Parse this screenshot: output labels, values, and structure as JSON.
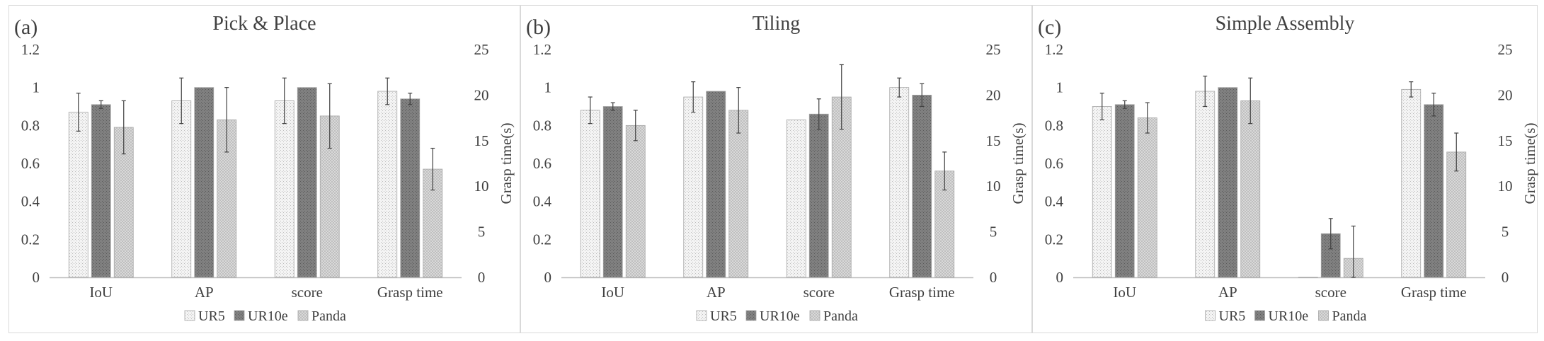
{
  "series_colors": {
    "UR5": "#f2f2f2",
    "UR10e": "#7f7f7f",
    "Panda": "#cfcfcf"
  },
  "chart_data": [
    {
      "type": "bar",
      "panel_label": "(a)",
      "title": "Pick & Place",
      "categories": [
        "IoU",
        "AP",
        "score",
        "Grasp time"
      ],
      "ylabel": "",
      "y2label": "Grasp time(s)",
      "ylim": [
        0,
        1.2
      ],
      "y2lim": [
        0,
        25
      ],
      "yticks": [
        "0",
        "0.2",
        "0.4",
        "0.6",
        "0.8",
        "1",
        "1.2"
      ],
      "y2ticks": [
        "0",
        "5",
        "10",
        "15",
        "20",
        "25"
      ],
      "grid": false,
      "legend": "bottom",
      "series": [
        {
          "name": "UR5",
          "values": [
            0.87,
            0.93,
            0.93,
            0.98
          ],
          "errors": [
            0.1,
            0.12,
            0.12,
            0.07
          ]
        },
        {
          "name": "UR10e",
          "values": [
            0.91,
            1.0,
            1.0,
            0.94
          ],
          "errors": [
            0.02,
            0.0,
            0.0,
            0.03
          ]
        },
        {
          "name": "Panda",
          "values": [
            0.79,
            0.83,
            0.85,
            0.57
          ],
          "errors": [
            0.14,
            0.17,
            0.17,
            0.11
          ]
        }
      ]
    },
    {
      "type": "bar",
      "panel_label": "(b)",
      "title": "Tiling",
      "categories": [
        "IoU",
        "AP",
        "score",
        "Grasp time"
      ],
      "ylabel": "",
      "y2label": "Grasp time(s)",
      "ylim": [
        0,
        1.2
      ],
      "y2lim": [
        0,
        25
      ],
      "yticks": [
        "0",
        "0.2",
        "0.4",
        "0.6",
        "0.8",
        "1",
        "1.2"
      ],
      "y2ticks": [
        "0",
        "5",
        "10",
        "15",
        "20",
        "25"
      ],
      "grid": false,
      "legend": "bottom",
      "series": [
        {
          "name": "UR5",
          "values": [
            0.88,
            0.95,
            0.83,
            1.0
          ],
          "errors": [
            0.07,
            0.08,
            0.0,
            0.05
          ]
        },
        {
          "name": "UR10e",
          "values": [
            0.9,
            0.98,
            0.86,
            0.96
          ],
          "errors": [
            0.02,
            0.0,
            0.08,
            0.06
          ]
        },
        {
          "name": "Panda",
          "values": [
            0.8,
            0.88,
            0.95,
            0.56
          ],
          "errors": [
            0.08,
            0.12,
            0.17,
            0.1
          ]
        }
      ]
    },
    {
      "type": "bar",
      "panel_label": "(c)",
      "title": "Simple Assembly",
      "categories": [
        "IoU",
        "AP",
        "score",
        "Grasp time"
      ],
      "ylabel": "",
      "y2label": "Grasp time(s)",
      "ylim": [
        0,
        1.2
      ],
      "y2lim": [
        0,
        25
      ],
      "yticks": [
        "0",
        "0.2",
        "0.4",
        "0.6",
        "0.8",
        "1",
        "1.2"
      ],
      "y2ticks": [
        "0",
        "5",
        "10",
        "15",
        "20",
        "25"
      ],
      "grid": false,
      "legend": "bottom",
      "series": [
        {
          "name": "UR5",
          "values": [
            0.9,
            0.98,
            0.0,
            0.99
          ],
          "errors": [
            0.07,
            0.08,
            0.0,
            0.04
          ]
        },
        {
          "name": "UR10e",
          "values": [
            0.91,
            1.0,
            0.23,
            0.91
          ],
          "errors": [
            0.02,
            0.0,
            0.08,
            0.06
          ]
        },
        {
          "name": "Panda",
          "values": [
            0.84,
            0.93,
            0.1,
            0.66
          ],
          "errors": [
            0.08,
            0.12,
            0.17,
            0.1
          ]
        }
      ]
    }
  ]
}
